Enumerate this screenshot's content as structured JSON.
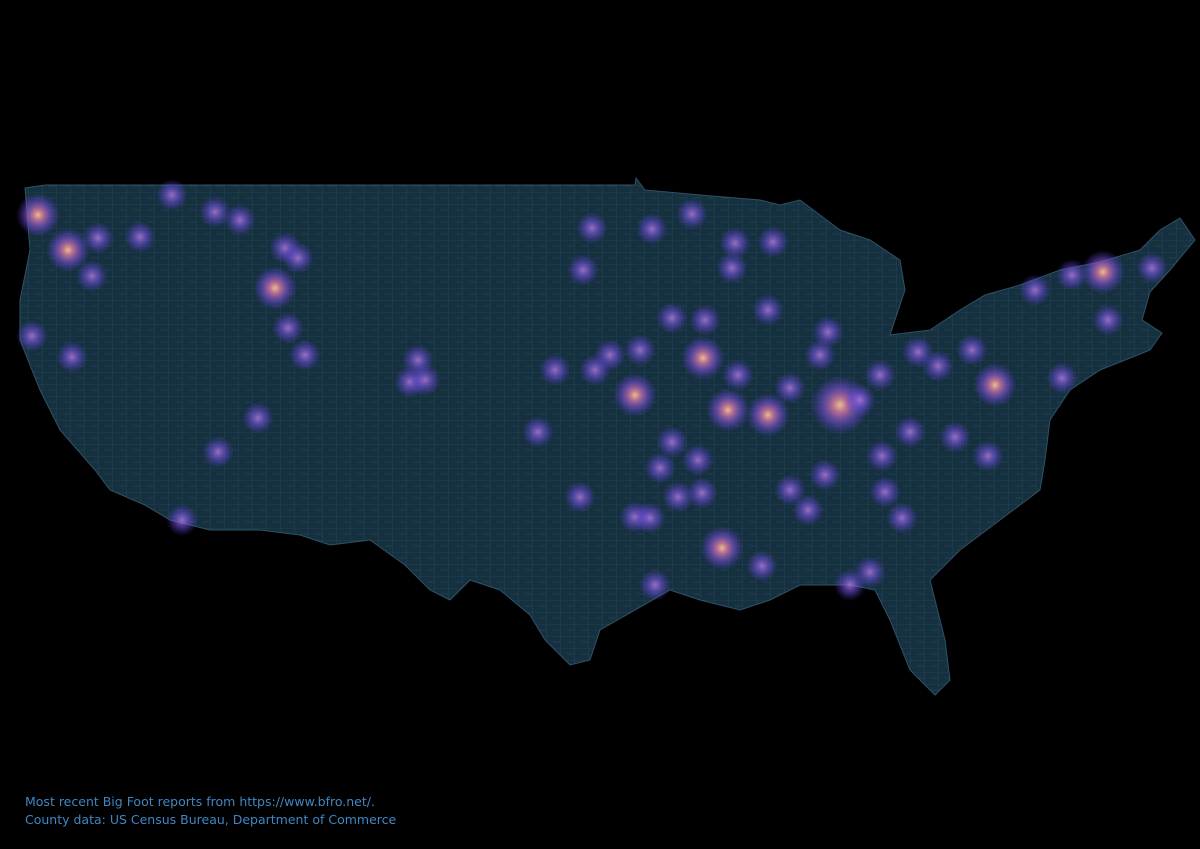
{
  "caption": {
    "line1": "Most recent Big Foot reports from https://www.bfro.net/.",
    "line2": "County data: US Census Bureau, Department of Commerce"
  }
}
